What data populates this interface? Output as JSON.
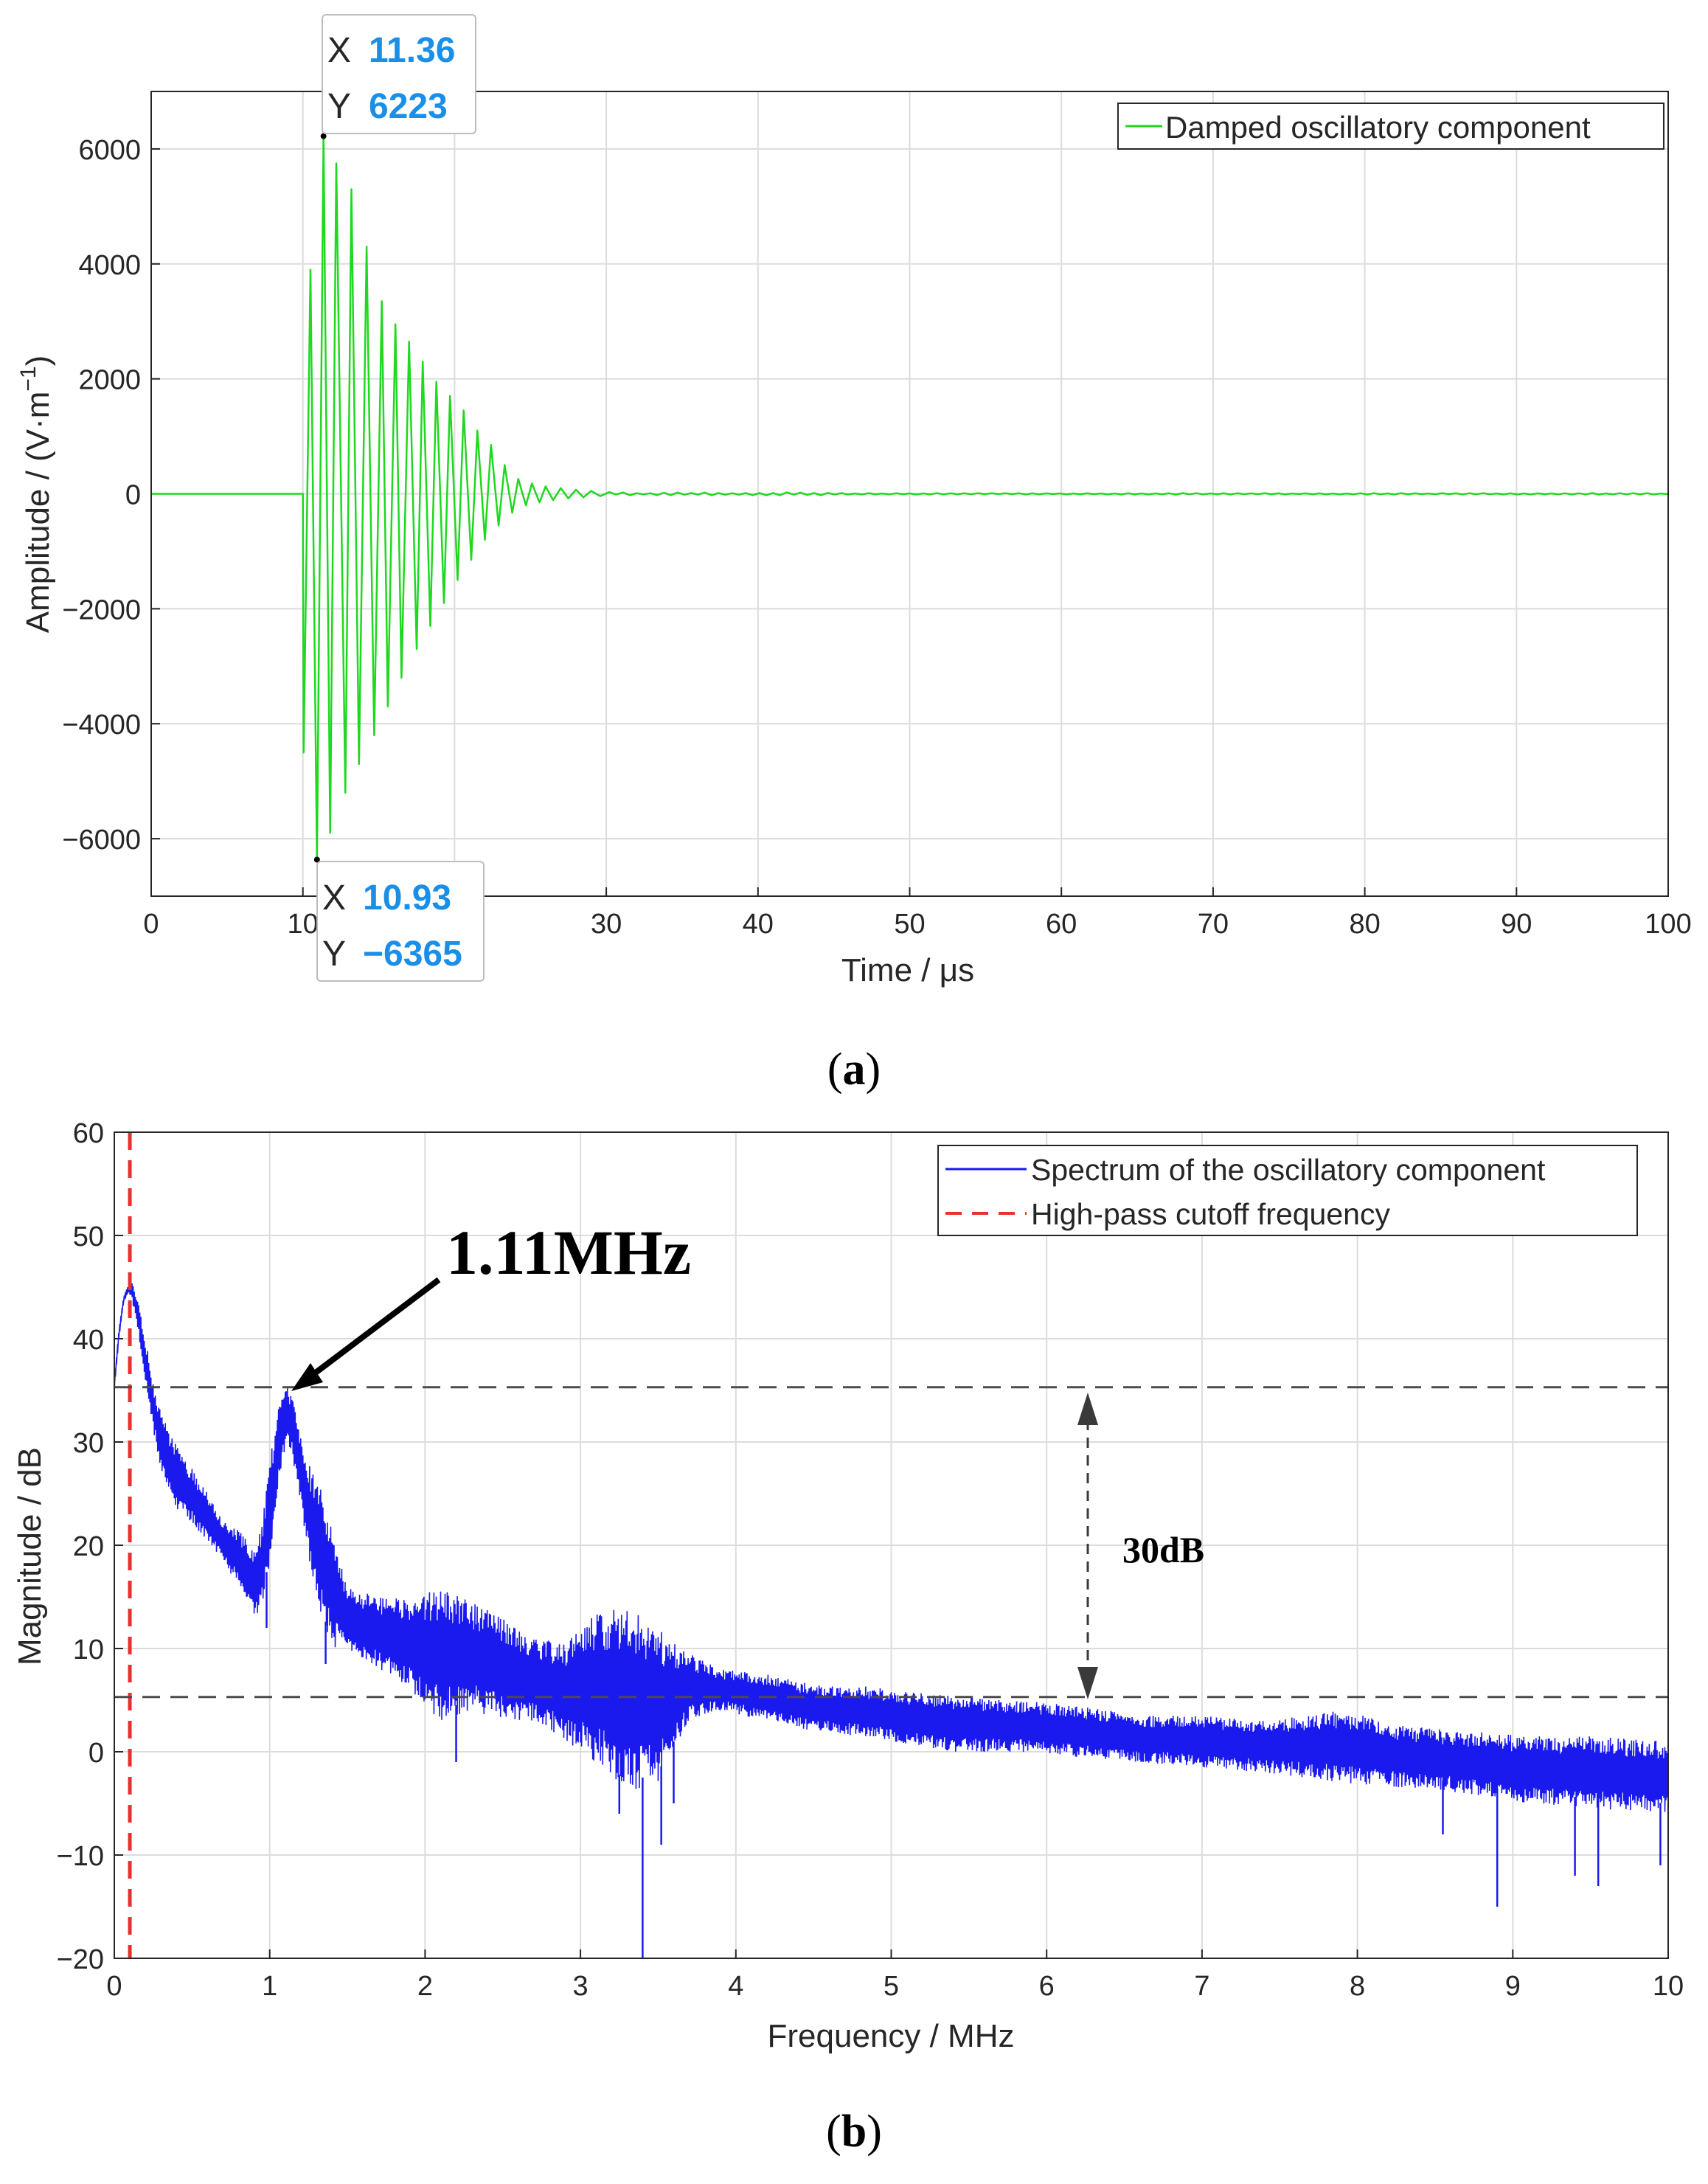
{
  "chart_data": [
    {
      "panel_label": "a",
      "type": "line",
      "title": "",
      "xlabel": "Time / μs",
      "ylabel": "Amplitude / (V·m",
      "ylabel_sup": "−1",
      "ylabel_close": ")",
      "xlim": [
        0,
        100
      ],
      "ylim": [
        -7000,
        7000
      ],
      "xticks": [
        0,
        10,
        20,
        30,
        40,
        50,
        60,
        70,
        80,
        90,
        100
      ],
      "yticks": [
        -6000,
        -4000,
        -2000,
        0,
        2000,
        4000,
        6000
      ],
      "ytick_labels": [
        "−6000",
        "−4000",
        "−2000",
        "0",
        "2000",
        "4000",
        "6000"
      ],
      "grid": true,
      "legend_position": "top-right",
      "series": [
        {
          "name": "Damped oscillatory component",
          "color": "#1fd81f",
          "onset": 10.0,
          "peaks": [
            {
              "x": 10.05,
              "y": -4500
            },
            {
              "x": 10.5,
              "y": 3900
            },
            {
              "x": 10.93,
              "y": -6365
            },
            {
              "x": 11.36,
              "y": 6223
            },
            {
              "x": 11.8,
              "y": -5900
            },
            {
              "x": 12.2,
              "y": 5750
            },
            {
              "x": 12.8,
              "y": -5200
            },
            {
              "x": 13.2,
              "y": 5300
            },
            {
              "x": 13.7,
              "y": -4700
            },
            {
              "x": 14.2,
              "y": 4300
            },
            {
              "x": 14.7,
              "y": -4200
            },
            {
              "x": 15.2,
              "y": 3350
            },
            {
              "x": 15.6,
              "y": -3700
            },
            {
              "x": 16.1,
              "y": 2950
            },
            {
              "x": 16.5,
              "y": -3200
            },
            {
              "x": 17.0,
              "y": 2650
            },
            {
              "x": 17.5,
              "y": -2700
            },
            {
              "x": 17.9,
              "y": 2300
            },
            {
              "x": 18.4,
              "y": -2300
            },
            {
              "x": 18.8,
              "y": 1950
            },
            {
              "x": 19.3,
              "y": -1900
            },
            {
              "x": 19.7,
              "y": 1700
            },
            {
              "x": 20.2,
              "y": -1500
            },
            {
              "x": 20.6,
              "y": 1450
            },
            {
              "x": 21.1,
              "y": -1150
            },
            {
              "x": 21.5,
              "y": 1100
            },
            {
              "x": 22.0,
              "y": -800
            },
            {
              "x": 22.4,
              "y": 850
            },
            {
              "x": 22.9,
              "y": -550
            },
            {
              "x": 23.3,
              "y": 500
            },
            {
              "x": 23.8,
              "y": -330
            },
            {
              "x": 24.2,
              "y": 260
            },
            {
              "x": 24.7,
              "y": -200
            },
            {
              "x": 25.1,
              "y": 180
            },
            {
              "x": 25.6,
              "y": -150
            },
            {
              "x": 26.0,
              "y": 130
            },
            {
              "x": 26.5,
              "y": -110
            },
            {
              "x": 27.0,
              "y": 100
            },
            {
              "x": 27.5,
              "y": -80
            },
            {
              "x": 28.0,
              "y": 70
            },
            {
              "x": 28.5,
              "y": -60
            },
            {
              "x": 29.0,
              "y": 50
            },
            {
              "x": 29.6,
              "y": -40
            },
            {
              "x": 30.2,
              "y": 30
            }
          ]
        }
      ],
      "datatips": [
        {
          "x_label": "X",
          "x_value": "11.36",
          "y_label": "Y",
          "y_value": "6223",
          "x": 11.36,
          "y": 6223
        },
        {
          "x_label": "X",
          "x_value": "10.93",
          "y_label": "Y",
          "y_value": "−6365",
          "x": 10.93,
          "y": -6365
        }
      ]
    },
    {
      "panel_label": "b",
      "type": "line",
      "title": "",
      "xlabel": "Frequency / MHz",
      "ylabel": "Magnitude / dB",
      "xlim": [
        0,
        10
      ],
      "ylim": [
        -20,
        60
      ],
      "xticks": [
        0,
        1,
        2,
        3,
        4,
        5,
        6,
        7,
        8,
        9,
        10
      ],
      "yticks": [
        -20,
        -10,
        0,
        10,
        20,
        30,
        40,
        50,
        60
      ],
      "ytick_labels": [
        "−20",
        "−10",
        "0",
        "10",
        "20",
        "30",
        "40",
        "50",
        "60"
      ],
      "grid": true,
      "legend_position": "top-right",
      "series": [
        {
          "name": "Spectrum of the oscillatory component",
          "color": "#1a1aee",
          "x": [
            0.0,
            0.03,
            0.06,
            0.09,
            0.11,
            0.15,
            0.2,
            0.25,
            0.3,
            0.35,
            0.4,
            0.45,
            0.5,
            0.6,
            0.7,
            0.8,
            0.9,
            0.95,
            1.0,
            1.05,
            1.08,
            1.11,
            1.14,
            1.2,
            1.25,
            1.3,
            1.35,
            1.4,
            1.5,
            1.7,
            1.9,
            2.1,
            2.3,
            2.5,
            2.7,
            2.9,
            3.1,
            3.3,
            3.5,
            3.7,
            3.9,
            4.2,
            4.5,
            4.8,
            5.0,
            5.4,
            5.8,
            6.2,
            6.6,
            7.0,
            7.4,
            7.9,
            8.3,
            8.7,
            9.1,
            9.5,
            10.0
          ],
          "upper": [
            36,
            41,
            44,
            45.3,
            45.6,
            44,
            40,
            36,
            33,
            31,
            30,
            28.5,
            27.5,
            25,
            22.5,
            21.5,
            19.5,
            22,
            28,
            33,
            34.5,
            35.4,
            34.5,
            31,
            28,
            26,
            25,
            22,
            16,
            15,
            14.8,
            16,
            14.5,
            13,
            11,
            10.5,
            13.5,
            14,
            12,
            9.5,
            8,
            7.5,
            6.5,
            6.5,
            6,
            5.5,
            5,
            4.5,
            3.5,
            3.5,
            3,
            4,
            2.5,
            2,
            1.5,
            1.5,
            1
          ],
          "lower": [
            35,
            40,
            43.5,
            44.5,
            44,
            41,
            36,
            31,
            27,
            25,
            23.5,
            23,
            22,
            20.5,
            18.5,
            16,
            13,
            14,
            18,
            25,
            28,
            30,
            29,
            24,
            19,
            15,
            12,
            10,
            10,
            8,
            6,
            3,
            4,
            3,
            3,
            1,
            -1,
            -4,
            -3,
            3,
            4,
            3,
            2,
            1.5,
            1,
            0,
            0,
            -0.5,
            -1,
            -1.5,
            -2,
            -3,
            -3.5,
            -4,
            -5,
            -5.5,
            -6
          ],
          "spikes": [
            {
              "x": 0.98,
              "y": 12
            },
            {
              "x": 1.36,
              "y": 8.5
            },
            {
              "x": 2.14,
              "y": 11
            },
            {
              "x": 2.2,
              "y": -1
            },
            {
              "x": 3.25,
              "y": -6
            },
            {
              "x": 3.4,
              "y": -20
            },
            {
              "x": 3.52,
              "y": -9
            },
            {
              "x": 3.6,
              "y": -5
            },
            {
              "x": 5.4,
              "y": 1
            },
            {
              "x": 7.95,
              "y": -2
            },
            {
              "x": 8.55,
              "y": -8
            },
            {
              "x": 8.9,
              "y": -15
            },
            {
              "x": 9.4,
              "y": -12
            },
            {
              "x": 9.55,
              "y": -13
            },
            {
              "x": 9.95,
              "y": -11
            }
          ]
        },
        {
          "name": "High-pass cutoff frequency",
          "color": "#e83030",
          "style": "dashed",
          "x": 0.1
        }
      ],
      "reference_lines": [
        35.3,
        5.3
      ],
      "annotations": {
        "peak_label": "1.11MHz",
        "peak": {
          "x": 1.11,
          "y": 35
        },
        "difference_label": "30dB",
        "difference_x": 6.25
      }
    }
  ]
}
